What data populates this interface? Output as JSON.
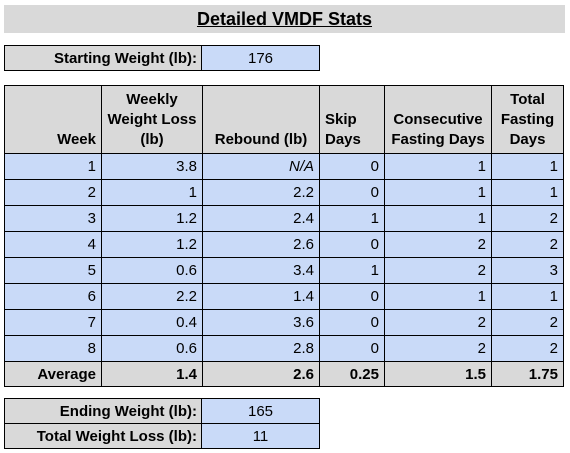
{
  "title": "Detailed VMDF Stats",
  "starting": {
    "label": "Starting Weight (lb):",
    "value": "176"
  },
  "table": {
    "headers": {
      "week": "Week",
      "loss": "Weekly Weight Loss (lb)",
      "rebound": "Rebound (lb)",
      "skip": "Skip Days",
      "consec": "Consecutive Fasting Days",
      "total": "Total Fasting Days"
    },
    "rows": [
      {
        "week": "1",
        "loss": "3.8",
        "rebound": "N/A",
        "skip": "0",
        "consec": "1",
        "total": "1"
      },
      {
        "week": "2",
        "loss": "1",
        "rebound": "2.2",
        "skip": "0",
        "consec": "1",
        "total": "1"
      },
      {
        "week": "3",
        "loss": "1.2",
        "rebound": "2.4",
        "skip": "1",
        "consec": "1",
        "total": "2"
      },
      {
        "week": "4",
        "loss": "1.2",
        "rebound": "2.6",
        "skip": "0",
        "consec": "2",
        "total": "2"
      },
      {
        "week": "5",
        "loss": "0.6",
        "rebound": "3.4",
        "skip": "1",
        "consec": "2",
        "total": "3"
      },
      {
        "week": "6",
        "loss": "2.2",
        "rebound": "1.4",
        "skip": "0",
        "consec": "1",
        "total": "1"
      },
      {
        "week": "7",
        "loss": "0.4",
        "rebound": "3.6",
        "skip": "0",
        "consec": "2",
        "total": "2"
      },
      {
        "week": "8",
        "loss": "0.6",
        "rebound": "2.8",
        "skip": "0",
        "consec": "2",
        "total": "2"
      }
    ],
    "average": {
      "label": "Average",
      "loss": "1.4",
      "rebound": "2.6",
      "skip": "0.25",
      "consec": "1.5",
      "total": "1.75"
    }
  },
  "ending": {
    "label": "Ending Weight (lb):",
    "value": "165"
  },
  "total_loss": {
    "label": "Total Weight Loss (lb):",
    "value": "11"
  },
  "colors": {
    "header_gray": "#d9d9d9",
    "cell_blue": "#c9daf8"
  }
}
